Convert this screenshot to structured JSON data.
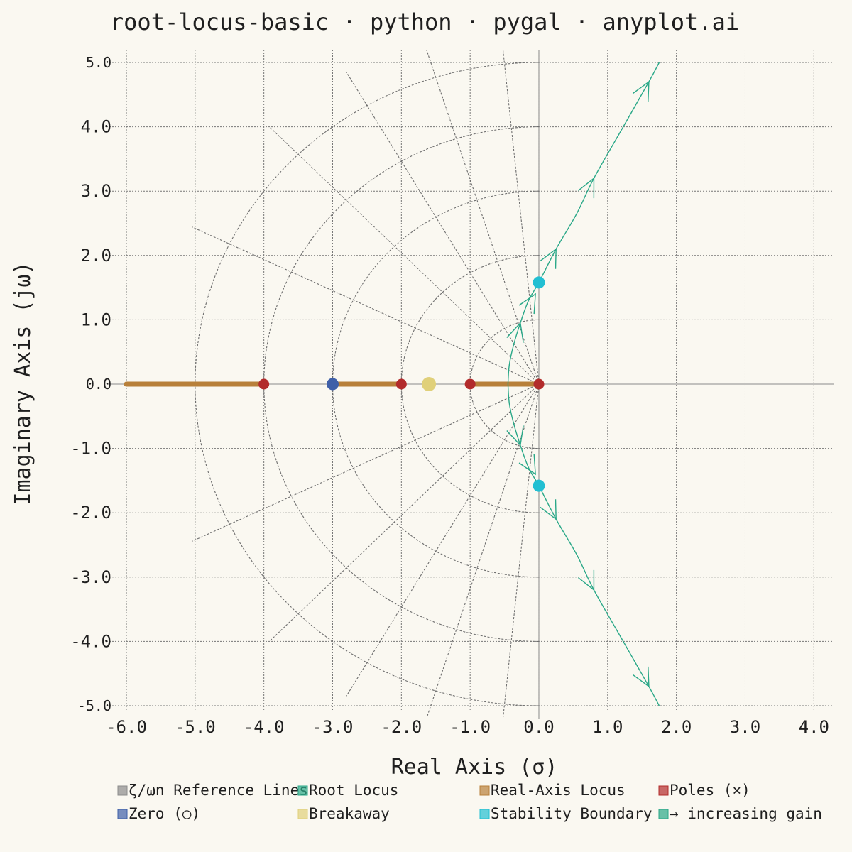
{
  "chart_data": {
    "type": "line",
    "title": "root-locus-basic · python · pygal · anyplot.ai",
    "xlabel": "Real Axis (σ)",
    "ylabel": "Imaginary Axis (jω)",
    "xlim": [
      -6.0,
      4.1
    ],
    "ylim": [
      -5.0,
      5.0
    ],
    "x_ticks": [
      "-6.0",
      "-5.0",
      "-4.0",
      "-3.0",
      "-2.0",
      "-1.0",
      "0.0",
      "1.0",
      "2.0",
      "3.0",
      "4.0"
    ],
    "y_ticks": [
      "5.0",
      "4.0",
      "3.0",
      "2.0",
      "1.0",
      "0.0",
      "-1.0",
      "-2.0",
      "-3.0",
      "-4.0",
      "-5.0"
    ],
    "grid": true,
    "legend_position": "bottom",
    "reference_lines": {
      "wn_radii": [
        1,
        2,
        3,
        4,
        5
      ],
      "zeta_values": [
        0.1,
        0.3,
        0.5,
        0.7,
        0.9
      ]
    },
    "series": [
      {
        "name": "ζ/ωn Reference Lines",
        "color": "#8C8C8C"
      },
      {
        "name": "Root Locus",
        "color": "#2AA888",
        "branches": [
          [
            [
              -0.45,
              0
            ],
            [
              -0.43,
              0.3
            ],
            [
              -0.37,
              0.6
            ],
            [
              -0.27,
              0.95
            ],
            [
              -0.15,
              1.3
            ],
            [
              0,
              1.58
            ],
            [
              0.25,
              2.1
            ],
            [
              0.55,
              2.65
            ],
            [
              0.8,
              3.2
            ],
            [
              1.2,
              3.95
            ],
            [
              1.6,
              4.7
            ],
            [
              1.75,
              5.0
            ]
          ],
          [
            [
              -0.45,
              0
            ],
            [
              -0.43,
              -0.3
            ],
            [
              -0.37,
              -0.6
            ],
            [
              -0.27,
              -0.95
            ],
            [
              -0.15,
              -1.3
            ],
            [
              0,
              -1.58
            ],
            [
              0.25,
              -2.1
            ],
            [
              0.55,
              -2.65
            ],
            [
              0.8,
              -3.2
            ],
            [
              1.2,
              -3.95
            ],
            [
              1.6,
              -4.7
            ],
            [
              1.75,
              -5.0
            ]
          ]
        ]
      },
      {
        "name": "Real-Axis Locus",
        "color": "#B8803A",
        "segments": [
          [
            -6.0,
            -4.0
          ],
          [
            -3.0,
            -2.0
          ],
          [
            -1.0,
            0.0
          ]
        ]
      },
      {
        "name": "Poles (×)",
        "color": "#B22B2B",
        "points": [
          [
            -4,
            0
          ],
          [
            -2,
            0
          ],
          [
            -1,
            0
          ],
          [
            0,
            0
          ]
        ]
      },
      {
        "name": "Zero (○)",
        "color": "#3E5FA8",
        "points": [
          [
            -3,
            0
          ]
        ]
      },
      {
        "name": "Breakaway",
        "color": "#E0D07A",
        "points": [
          [
            -1.6,
            0
          ]
        ]
      },
      {
        "name": "Stability Boundary",
        "color": "#22BFD2",
        "points": [
          [
            0,
            1.58
          ],
          [
            0,
            -1.58
          ]
        ]
      },
      {
        "name": "→ increasing gain",
        "color": "#2AA888",
        "arrows_at": [
          [
            -0.27,
            0.95
          ],
          [
            -0.05,
            1.4
          ],
          [
            0.25,
            2.1
          ],
          [
            0.8,
            3.2
          ],
          [
            1.6,
            4.7
          ],
          [
            -0.27,
            -0.95
          ],
          [
            -0.05,
            -1.4
          ],
          [
            0.25,
            -2.1
          ],
          [
            0.8,
            -3.2
          ],
          [
            1.6,
            -4.7
          ]
        ]
      }
    ]
  }
}
